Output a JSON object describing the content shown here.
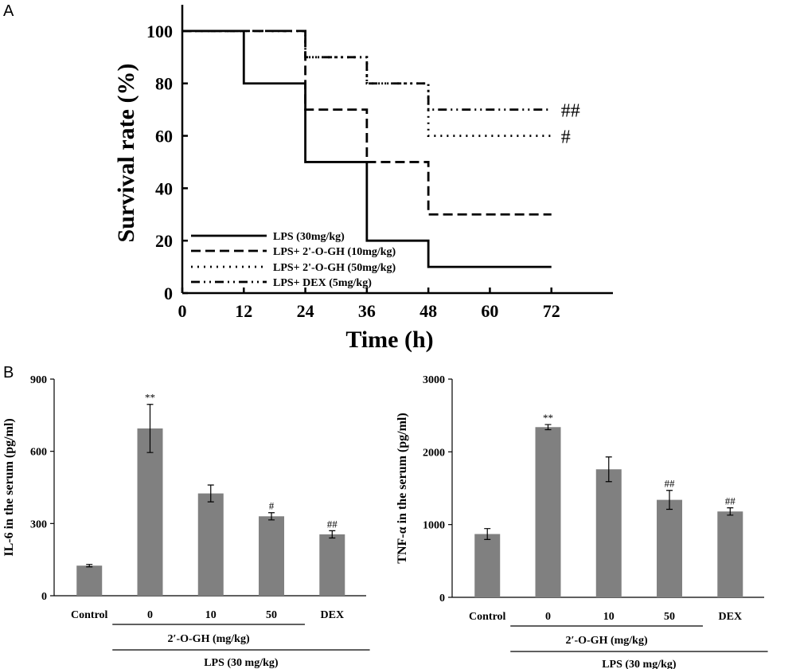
{
  "figure": {
    "panel_a_label": "A",
    "panel_b_label": "B"
  },
  "chart_data": [
    {
      "type": "line",
      "style": "step",
      "xlabel": "Time (h)",
      "ylabel": "Survival rate (%)",
      "xlim": [
        0,
        84
      ],
      "ylim": [
        0,
        110
      ],
      "xticks": [
        0,
        12,
        24,
        36,
        48,
        60,
        72
      ],
      "yticks": [
        0,
        20,
        40,
        60,
        80,
        100
      ],
      "legend_position": "bottom-left",
      "series": [
        {
          "name": "LPS (30mg/kg)",
          "dash": "solid",
          "x": [
            0,
            12,
            24,
            36,
            48,
            72
          ],
          "values": [
            100,
            80,
            50,
            20,
            10,
            10
          ],
          "annotation": ""
        },
        {
          "name": "LPS+ 2'-O-GH (10mg/kg)",
          "dash": "dashed",
          "x": [
            0,
            24,
            36,
            48,
            72
          ],
          "values": [
            100,
            70,
            50,
            30,
            30
          ],
          "annotation": ""
        },
        {
          "name": "LPS+ 2'-O-GH (50mg/kg)",
          "dash": "dotted",
          "x": [
            0,
            24,
            36,
            48,
            72
          ],
          "values": [
            100,
            90,
            80,
            60,
            60
          ],
          "annotation": "#"
        },
        {
          "name": "LPS+ DEX (5mg/kg)",
          "dash": "dashdotdot",
          "x": [
            0,
            24,
            36,
            48,
            72
          ],
          "values": [
            100,
            90,
            80,
            70,
            70
          ],
          "annotation": "##"
        }
      ]
    },
    {
      "type": "bar",
      "ylabel": "IL-6 in the serum (pg/ml)",
      "ylim": [
        0,
        900
      ],
      "yticks": [
        0,
        300,
        600,
        900
      ],
      "categories": [
        "Control",
        "0",
        "10",
        "50",
        "DEX"
      ],
      "values": [
        125,
        695,
        425,
        330,
        255
      ],
      "errors": [
        5,
        100,
        35,
        15,
        15
      ],
      "significance": [
        "",
        "**",
        "",
        "#",
        "##"
      ],
      "group_label": "2′-O-GH (mg/kg)",
      "outer_label": "LPS (30 mg/kg)",
      "bar_color": "#808080"
    },
    {
      "type": "bar",
      "ylabel": "TNF-α in the serum (pg/ml)",
      "ylim": [
        0,
        3000
      ],
      "yticks": [
        0,
        1000,
        2000,
        3000
      ],
      "categories": [
        "Control",
        "0",
        "10",
        "50",
        "DEX"
      ],
      "values": [
        870,
        2340,
        1760,
        1340,
        1180
      ],
      "errors": [
        75,
        35,
        170,
        130,
        50
      ],
      "significance": [
        "",
        "**",
        "",
        "##",
        "##"
      ],
      "group_label": "2′-O-GH (mg/kg)",
      "outer_label": "LPS (30 mg/kg)",
      "bar_color": "#808080"
    }
  ]
}
